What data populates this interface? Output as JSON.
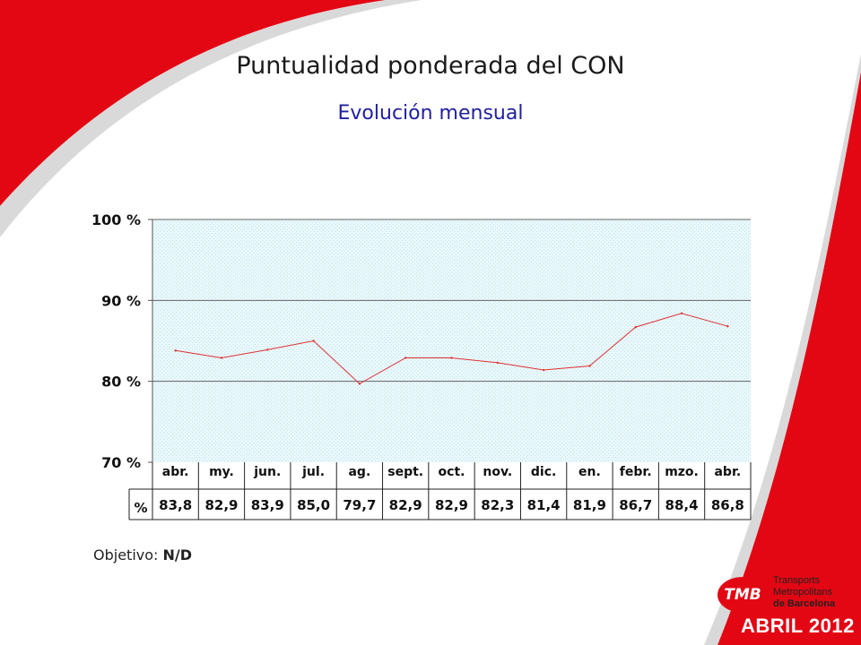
{
  "slide": {
    "title": "Puntualidad ponderada del CON",
    "subtitle": "Evolución mensual",
    "objective_label": "Objetivo:",
    "objective_value": "N/D",
    "logo": {
      "badge_text": "TMB",
      "line1": "Transports",
      "line2": "Metropolitans",
      "line3": "de Barcelona"
    },
    "date_label": "ABRIL 2012",
    "colors": {
      "accent_red": "#e30613",
      "title_text": "#1a1a1a",
      "subtitle_blue": "#1f1fa0",
      "plot_fill": "#e6f6fa",
      "line_color": "#e03030"
    }
  },
  "chart_data": {
    "type": "line",
    "title": "Puntualidad ponderada del CON",
    "subtitle": "Evolución mensual",
    "categories": [
      "abr.",
      "my.",
      "jun.",
      "jul.",
      "ag.",
      "sept.",
      "oct.",
      "nov.",
      "dic.",
      "en.",
      "febr.",
      "mzo.",
      "abr."
    ],
    "series": [
      {
        "values": [
          83.8,
          82.9,
          83.9,
          85.0,
          79.7,
          82.9,
          82.9,
          82.3,
          81.4,
          81.9,
          86.7,
          88.4,
          86.8
        ]
      }
    ],
    "value_labels": [
      "83,8",
      "82,9",
      "83,9",
      "85,0",
      "79,7",
      "82,9",
      "82,9",
      "82,3",
      "81,4",
      "81,9",
      "86,7",
      "88,4",
      "86,8"
    ],
    "table_row_label": "%",
    "ylim": [
      70,
      100
    ],
    "yticks": [
      70,
      80,
      90,
      100
    ],
    "ytick_labels": [
      "70 %",
      "80 %",
      "90 %",
      "100 %"
    ],
    "grid": true,
    "legend": "none"
  }
}
